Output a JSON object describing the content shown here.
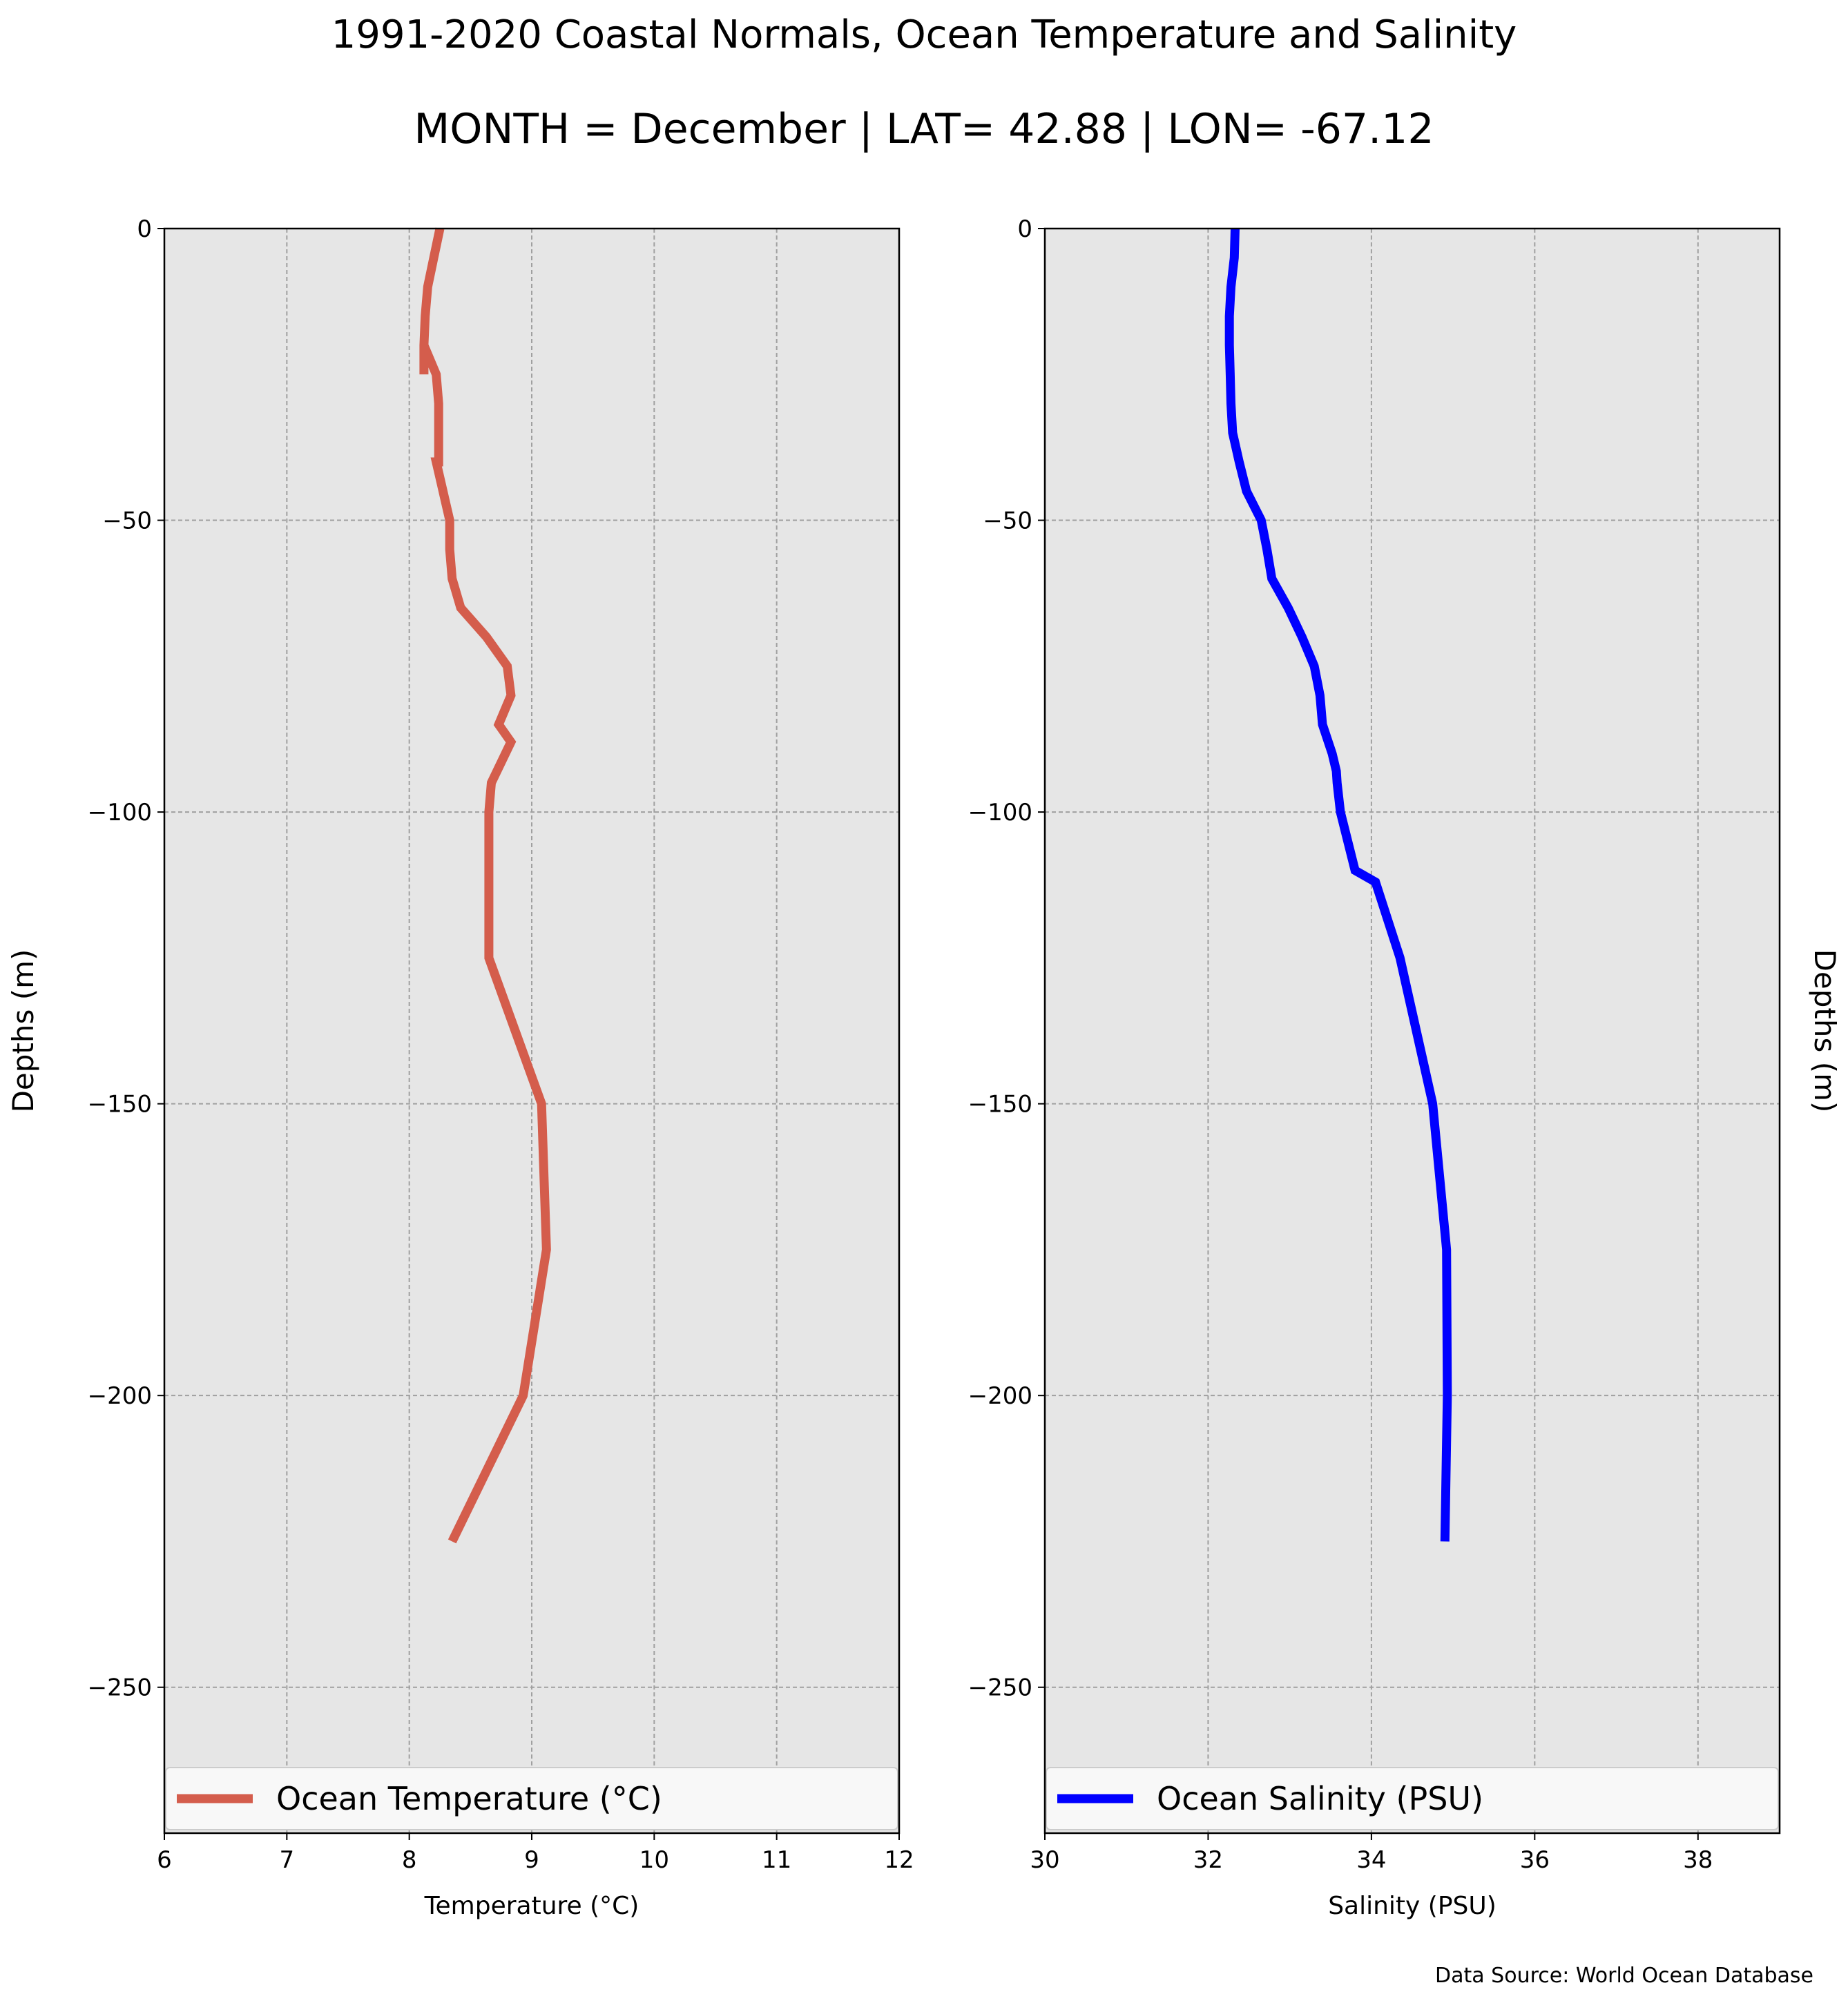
{
  "title": "1991-2020 Coastal Normals, Ocean Temperature and Salinity",
  "subtitle": "MONTH = December | LAT= 42.88 | LON= -67.12",
  "source": "Data Source: World Ocean Database",
  "colors": {
    "temperature": "#d45d4c",
    "salinity": "#0000ff",
    "plot_bg": "#e6e6e6",
    "grid": "#a0a0a0"
  },
  "chart_data": [
    {
      "type": "line",
      "xlabel": "Temperature (°C)",
      "ylabel": "Depths (m)",
      "xlim": [
        6,
        12
      ],
      "ylim": [
        -275,
        0
      ],
      "xticks": [
        6,
        7,
        8,
        9,
        10,
        11,
        12
      ],
      "yticks": [
        0,
        -50,
        -100,
        -150,
        -200,
        -250
      ],
      "xtick_labels": [
        "6",
        "7",
        "8",
        "9",
        "10",
        "11",
        "12"
      ],
      "ytick_labels": [
        "0",
        "−50",
        "−100",
        "−150",
        "−200",
        "−250"
      ],
      "grid": true,
      "legend_position": "bottom",
      "series": [
        {
          "name": "Ocean Temperature (°C)",
          "x": [
            8.25,
            8.2,
            8.15,
            8.13,
            8.12,
            8.12,
            8.12,
            8.22,
            8.24,
            8.24,
            8.24,
            8.22,
            8.33,
            8.33,
            8.35,
            8.42,
            8.63,
            8.8,
            8.83,
            8.73,
            8.83,
            8.67,
            8.65,
            8.65,
            8.65,
            8.65,
            8.65,
            8.65,
            9.08,
            9.12,
            8.93,
            8.35
          ],
          "y": [
            0,
            -5,
            -10,
            -15,
            -20,
            -25,
            -20,
            -25,
            -30,
            -35,
            -40,
            -40,
            -50,
            -55,
            -60,
            -65,
            -70,
            -75,
            -80,
            -85,
            -88,
            -95,
            -100,
            -105,
            -110,
            -115,
            -120,
            -125,
            -150,
            -175,
            -200,
            -225
          ]
        }
      ]
    },
    {
      "type": "line",
      "xlabel": "Salinity (PSU)",
      "ylabel": "Depths (m)",
      "xlim": [
        30,
        39
      ],
      "ylim": [
        -275,
        0
      ],
      "xticks": [
        30,
        32,
        34,
        36,
        38
      ],
      "yticks": [
        0,
        -50,
        -100,
        -150,
        -200,
        -250
      ],
      "xtick_labels": [
        "30",
        "32",
        "34",
        "36",
        "38"
      ],
      "ytick_labels": [
        "0",
        "−50",
        "−100",
        "−150",
        "−200",
        "−250"
      ],
      "grid": true,
      "legend_position": "bottom",
      "series": [
        {
          "name": "Ocean Salinity (PSU)",
          "x": [
            32.33,
            32.32,
            32.28,
            32.26,
            32.26,
            32.27,
            32.28,
            32.3,
            32.38,
            32.47,
            32.65,
            32.72,
            32.78,
            32.98,
            33.15,
            33.3,
            33.37,
            33.4,
            33.52,
            33.57,
            33.58,
            33.62,
            33.8,
            34.05,
            34.35,
            34.75,
            34.92,
            34.93,
            34.9
          ],
          "y": [
            0,
            -5,
            -10,
            -15,
            -20,
            -25,
            -30,
            -35,
            -40,
            -45,
            -50,
            -55,
            -60,
            -65,
            -70,
            -75,
            -80,
            -85,
            -90,
            -93,
            -95,
            -100,
            -110,
            -112,
            -125,
            -150,
            -175,
            -200,
            -225
          ]
        }
      ]
    }
  ]
}
